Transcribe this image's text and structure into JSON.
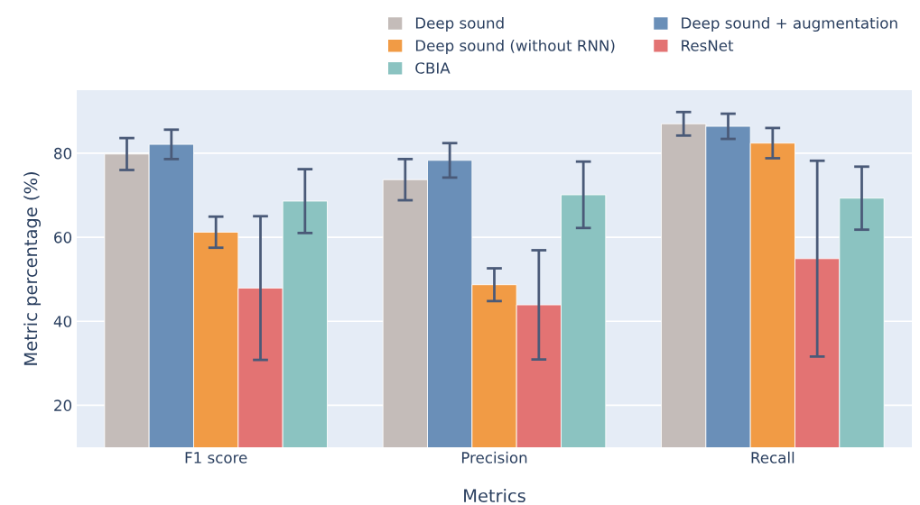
{
  "chart_data": {
    "type": "bar",
    "xlabel": "Metrics",
    "ylabel": "Metric percentage (%)",
    "categories": [
      "F1 score",
      "Precision",
      "Recall"
    ],
    "series": [
      {
        "name": "Deep sound",
        "color": "#c4bcb9",
        "values": [
          79.8,
          73.7,
          87.0
        ],
        "errors": [
          3.8,
          4.9,
          2.8
        ]
      },
      {
        "name": "Deep sound + augmentation",
        "color": "#6a8fb8",
        "values": [
          82.1,
          78.3,
          86.4
        ],
        "errors": [
          3.5,
          4.1,
          3.0
        ]
      },
      {
        "name": "Deep sound (without RNN)",
        "color": "#f19b45",
        "values": [
          61.2,
          48.7,
          82.4
        ],
        "errors": [
          3.7,
          3.9,
          3.6
        ]
      },
      {
        "name": "ResNet",
        "color": "#e37373",
        "values": [
          47.9,
          43.9,
          54.9
        ],
        "errors": [
          17.1,
          13.0,
          23.3
        ]
      },
      {
        "name": "CBIA",
        "color": "#8bc3c1",
        "values": [
          68.6,
          70.1,
          69.3
        ],
        "errors": [
          7.6,
          7.9,
          7.5
        ]
      }
    ],
    "ylim": [
      10,
      95
    ],
    "yticks": [
      20,
      40,
      60,
      80
    ],
    "grid": "y",
    "legend": "top right"
  }
}
